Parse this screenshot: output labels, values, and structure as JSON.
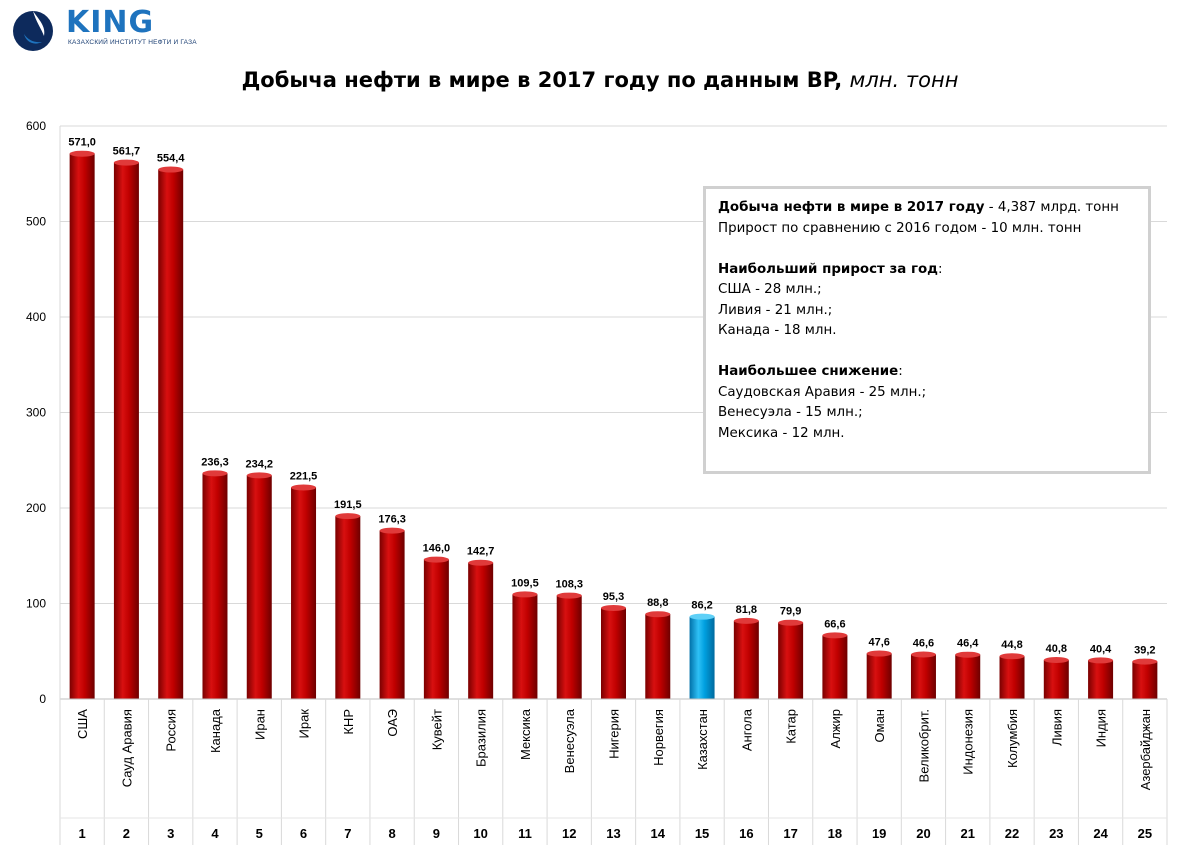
{
  "logo": {
    "brand": "KING",
    "subtitle": "КАЗАХСКИЙ ИНСТИТУТ НЕФТИ И ГАЗА"
  },
  "title": {
    "main": "Добыча нефти в мире в 2017 году по данным BP",
    "unit": "млн. тонн"
  },
  "info": {
    "line1_bold": "Добыча нефти в мире в 2017 году",
    "line1_rest": " - 4,387 млрд. тонн",
    "line2": "Прирост по сравнению с 2016 годом - 10 млн. тонн",
    "growth_heading": "Наибольший прирост за год",
    "growth_items": [
      "США - 28 млн.;",
      "Ливия - 21 млн.;",
      "Канада - 18 млн."
    ],
    "decline_heading": "Наибольшее снижение",
    "decline_items": [
      "Саудовская Аравия - 25 млн.;",
      "Венесуэла - 15 млн.;",
      "Мексика - 12 млн."
    ]
  },
  "colors": {
    "bar": "#c00000",
    "bar_highlight": "#00a0e0",
    "grid": "#d9d9d9"
  },
  "chart_data": {
    "type": "bar",
    "categories": [
      "США",
      "Сауд Аравия",
      "Россия",
      "Канада",
      "Иран",
      "Ирак",
      "КНР",
      "ОАЭ",
      "Кувейт",
      "Бразилия",
      "Мексика",
      "Венесуэла",
      "Нигерия",
      "Норвегия",
      "Казахстан",
      "Ангола",
      "Катар",
      "Алжир",
      "Оман",
      "Великобрит.",
      "Индонезия",
      "Колумбия",
      "Ливия",
      "Индия",
      "Азербайджан"
    ],
    "ranks": [
      "1",
      "2",
      "3",
      "4",
      "5",
      "6",
      "7",
      "8",
      "9",
      "10",
      "11",
      "12",
      "13",
      "14",
      "15",
      "16",
      "17",
      "18",
      "19",
      "20",
      "21",
      "22",
      "23",
      "24",
      "25"
    ],
    "values": [
      571.0,
      561.7,
      554.4,
      236.3,
      234.2,
      221.5,
      191.5,
      176.3,
      146.0,
      142.7,
      109.5,
      108.3,
      95.3,
      88.8,
      86.2,
      81.8,
      79.9,
      66.6,
      47.6,
      46.6,
      46.4,
      44.8,
      40.8,
      40.4,
      39.2
    ],
    "value_labels": [
      "571,0",
      "561,7",
      "554,4",
      "236,3",
      "234,2",
      "221,5",
      "191,5",
      "176,3",
      "146,0",
      "142,7",
      "109,5",
      "108,3",
      "95,3",
      "88,8",
      "86,2",
      "81,8",
      "79,9",
      "66,6",
      "47,6",
      "46,6",
      "46,4",
      "44,8",
      "40,8",
      "40,4",
      "39,2"
    ],
    "highlight": "Казахстан",
    "ylim": [
      0,
      600
    ],
    "yticks": [
      0,
      100,
      200,
      300,
      400,
      500,
      600
    ],
    "grid": true,
    "legend": "none"
  }
}
